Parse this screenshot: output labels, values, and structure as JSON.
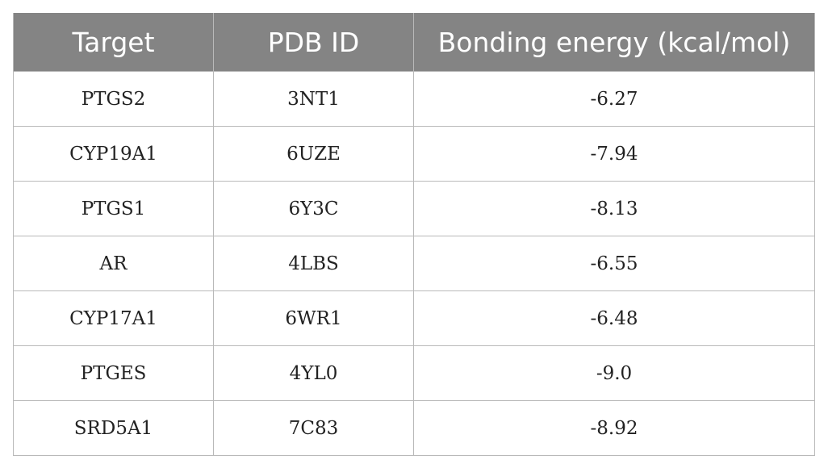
{
  "table": {
    "headers": [
      "Target",
      "PDB ID",
      "Bonding energy (kcal/mol)"
    ],
    "rows": [
      [
        "PTGS2",
        "3NT1",
        "-6.27"
      ],
      [
        "CYP19A1",
        "6UZE",
        "-7.94"
      ],
      [
        "PTGS1",
        "6Y3C",
        "-8.13"
      ],
      [
        "AR",
        "4LBS",
        "-6.55"
      ],
      [
        "CYP17A1",
        "6WR1",
        "-6.48"
      ],
      [
        "PTGES",
        "4YL0",
        "-9.0"
      ],
      [
        "SRD5A1",
        "7C83",
        "-8.92"
      ]
    ]
  },
  "colors": {
    "header_background": "#848484",
    "header_text": "#ffffff",
    "grid_line": "#b9b9b9"
  }
}
